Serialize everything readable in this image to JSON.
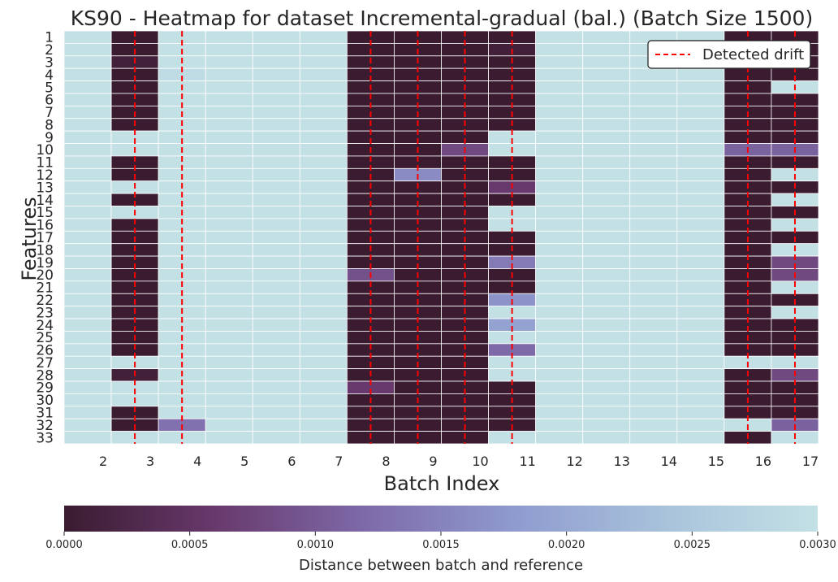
{
  "chart_data": {
    "type": "heatmap",
    "title": "KS90 - Heatmap for dataset Incremental-gradual (bal.) (Batch Size 1500)",
    "xlabel": "Batch Index",
    "ylabel": "Features",
    "x_ticks": [
      "2",
      "3",
      "4",
      "5",
      "6",
      "7",
      "8",
      "9",
      "10",
      "11",
      "12",
      "13",
      "14",
      "15",
      "16",
      "17"
    ],
    "y_ticks": [
      "1",
      "2",
      "3",
      "4",
      "5",
      "6",
      "7",
      "8",
      "9",
      "10",
      "11",
      "12",
      "13",
      "14",
      "15",
      "16",
      "17",
      "18",
      "19",
      "20",
      "21",
      "22",
      "23",
      "24",
      "25",
      "26",
      "27",
      "28",
      "29",
      "30",
      "31",
      "32",
      "33"
    ],
    "legend": {
      "label": "Detected drift",
      "placement": "top-right",
      "color": "#ff0000"
    },
    "drift_positions": [
      2.5,
      3.5,
      7.5,
      8.5,
      9.5,
      10.5,
      15.5,
      16.5
    ],
    "colorbar": {
      "label": "Distance between batch and reference",
      "range": [
        0,
        0.003
      ],
      "ticks": [
        "0.0000",
        "0.0005",
        "0.0010",
        "0.0015",
        "0.0020",
        "0.0025",
        "0.0030"
      ]
    },
    "colormap": [
      "#3a1b30",
      "#68396c",
      "#7e6aa9",
      "#8f9bcf",
      "#a9c3db",
      "#c3e0e5"
    ],
    "values": [
      [
        0.003,
        0,
        0.003,
        0.003,
        0.003,
        0.003,
        0,
        0,
        0,
        0,
        0.003,
        0.003,
        0.003,
        0.003,
        0,
        0
      ],
      [
        0.003,
        0,
        0.003,
        0.003,
        0.003,
        0.003,
        0,
        0,
        0,
        0.0001,
        0.003,
        0.003,
        0.003,
        0.003,
        0,
        0
      ],
      [
        0.003,
        0.0001,
        0.003,
        0.003,
        0.003,
        0.003,
        0,
        0,
        0,
        0,
        0.003,
        0.003,
        0.003,
        0.003,
        0,
        0
      ],
      [
        0.003,
        0,
        0.0029,
        0.003,
        0.003,
        0.003,
        0,
        0,
        0,
        0,
        0.003,
        0.003,
        0.003,
        0.003,
        0,
        0
      ],
      [
        0.003,
        0,
        0.003,
        0.003,
        0.003,
        0.003,
        0,
        0,
        0,
        0,
        0.003,
        0.003,
        0.003,
        0.003,
        0,
        0.003
      ],
      [
        0.003,
        0,
        0.003,
        0.003,
        0.003,
        0.003,
        0,
        0,
        0,
        0,
        0.003,
        0.003,
        0.003,
        0.003,
        0,
        0
      ],
      [
        0.003,
        0,
        0.003,
        0.003,
        0.003,
        0.003,
        0,
        0,
        0,
        0,
        0.003,
        0.003,
        0.003,
        0.003,
        0,
        0
      ],
      [
        0.003,
        0,
        0.003,
        0.003,
        0.003,
        0.003,
        0,
        0,
        0,
        0,
        0.003,
        0.003,
        0.003,
        0.003,
        0,
        0
      ],
      [
        0.003,
        0.003,
        0.003,
        0.003,
        0.003,
        0.003,
        0,
        0,
        0,
        0.003,
        0.003,
        0.003,
        0.003,
        0.003,
        0,
        0
      ],
      [
        0.003,
        0.003,
        0.003,
        0.003,
        0.003,
        0.003,
        0,
        0,
        0.0008,
        0.003,
        0.003,
        0.003,
        0.003,
        0.003,
        0.0011,
        0.0011
      ],
      [
        0.003,
        0,
        0.003,
        0.003,
        0.003,
        0.003,
        0,
        0,
        0,
        0,
        0.003,
        0.003,
        0.003,
        0.003,
        0,
        0
      ],
      [
        0.003,
        0,
        0.003,
        0.003,
        0.003,
        0.003,
        0,
        0.0016,
        0,
        0,
        0.003,
        0.003,
        0.003,
        0.003,
        0,
        0.003
      ],
      [
        0.003,
        0.003,
        0.003,
        0.003,
        0.003,
        0.003,
        0,
        0,
        0,
        0.0006,
        0.003,
        0.003,
        0.003,
        0.003,
        0,
        0
      ],
      [
        0.003,
        0,
        0.003,
        0.003,
        0.003,
        0.003,
        0,
        0,
        0,
        0,
        0.003,
        0.003,
        0.003,
        0.003,
        0,
        0.003
      ],
      [
        0.003,
        0.003,
        0.003,
        0.003,
        0.003,
        0.003,
        0,
        0,
        0,
        0.003,
        0.003,
        0.003,
        0.003,
        0.003,
        0,
        0
      ],
      [
        0.003,
        0,
        0.003,
        0.003,
        0.003,
        0.003,
        0,
        0,
        0,
        0.003,
        0.003,
        0.003,
        0.003,
        0.003,
        0,
        0.003
      ],
      [
        0.003,
        0,
        0.003,
        0.003,
        0.003,
        0.003,
        0,
        0,
        0,
        0,
        0.003,
        0.003,
        0.003,
        0.003,
        0,
        0
      ],
      [
        0.003,
        0,
        0.003,
        0.003,
        0.003,
        0.003,
        0,
        0,
        0,
        0,
        0.003,
        0.003,
        0.003,
        0.003,
        0,
        0.003
      ],
      [
        0.003,
        0,
        0.003,
        0.003,
        0.003,
        0.003,
        0,
        0,
        0,
        0.0014,
        0.003,
        0.003,
        0.003,
        0.003,
        0,
        0.0008
      ],
      [
        0.003,
        0,
        0.003,
        0.003,
        0.003,
        0.003,
        0.0009,
        0,
        0,
        0,
        0.003,
        0.003,
        0.003,
        0.003,
        0,
        0.0008
      ],
      [
        0.003,
        0,
        0.003,
        0.003,
        0.003,
        0.003,
        0,
        0,
        0,
        0,
        0.003,
        0.003,
        0.003,
        0.003,
        0,
        0.003
      ],
      [
        0.003,
        0,
        0.003,
        0.003,
        0.003,
        0.003,
        0,
        0,
        0,
        0.0017,
        0.003,
        0.003,
        0.003,
        0.003,
        0,
        0
      ],
      [
        0.003,
        0,
        0.003,
        0.003,
        0.003,
        0.003,
        0,
        0,
        0,
        0.003,
        0.003,
        0.003,
        0.003,
        0.003,
        0,
        0.003
      ],
      [
        0.003,
        0,
        0.003,
        0.003,
        0.003,
        0.003,
        0,
        0,
        0,
        0.0019,
        0.003,
        0.003,
        0.003,
        0.003,
        0,
        0
      ],
      [
        0.003,
        0,
        0.003,
        0.003,
        0.003,
        0.003,
        0,
        0,
        0,
        0.003,
        0.003,
        0.003,
        0.003,
        0.003,
        0,
        0
      ],
      [
        0.003,
        0,
        0.003,
        0.003,
        0.003,
        0.003,
        0,
        0,
        0,
        0.0012,
        0.003,
        0.003,
        0.003,
        0.003,
        0,
        0
      ],
      [
        0.003,
        0.003,
        0.003,
        0.003,
        0.003,
        0.003,
        0,
        0,
        0,
        0.003,
        0.003,
        0.003,
        0.003,
        0.003,
        0.003,
        0.003
      ],
      [
        0.003,
        0.0001,
        0.003,
        0.003,
        0.003,
        0.003,
        0,
        0,
        0,
        0.003,
        0.003,
        0.003,
        0.003,
        0.003,
        0,
        0.0008
      ],
      [
        0.003,
        0.003,
        0.003,
        0.003,
        0.003,
        0.003,
        0.0006,
        0,
        0,
        0,
        0.003,
        0.003,
        0.003,
        0.003,
        0,
        0
      ],
      [
        0.003,
        0.003,
        0.003,
        0.003,
        0.003,
        0.003,
        0,
        0,
        0,
        0,
        0.003,
        0.003,
        0.003,
        0.003,
        0,
        0
      ],
      [
        0.003,
        0,
        0.003,
        0.003,
        0.003,
        0.003,
        0,
        0,
        0,
        0,
        0.003,
        0.003,
        0.003,
        0.003,
        0,
        0
      ],
      [
        0.003,
        0,
        0.0013,
        0.003,
        0.003,
        0.003,
        0,
        0,
        0,
        0,
        0.003,
        0.003,
        0.003,
        0.003,
        0.003,
        0.0011
      ],
      [
        0.003,
        0.003,
        0.003,
        0.003,
        0.003,
        0.003,
        0,
        0,
        0,
        0.003,
        0.003,
        0.003,
        0.003,
        0.003,
        0,
        0.003
      ]
    ]
  }
}
